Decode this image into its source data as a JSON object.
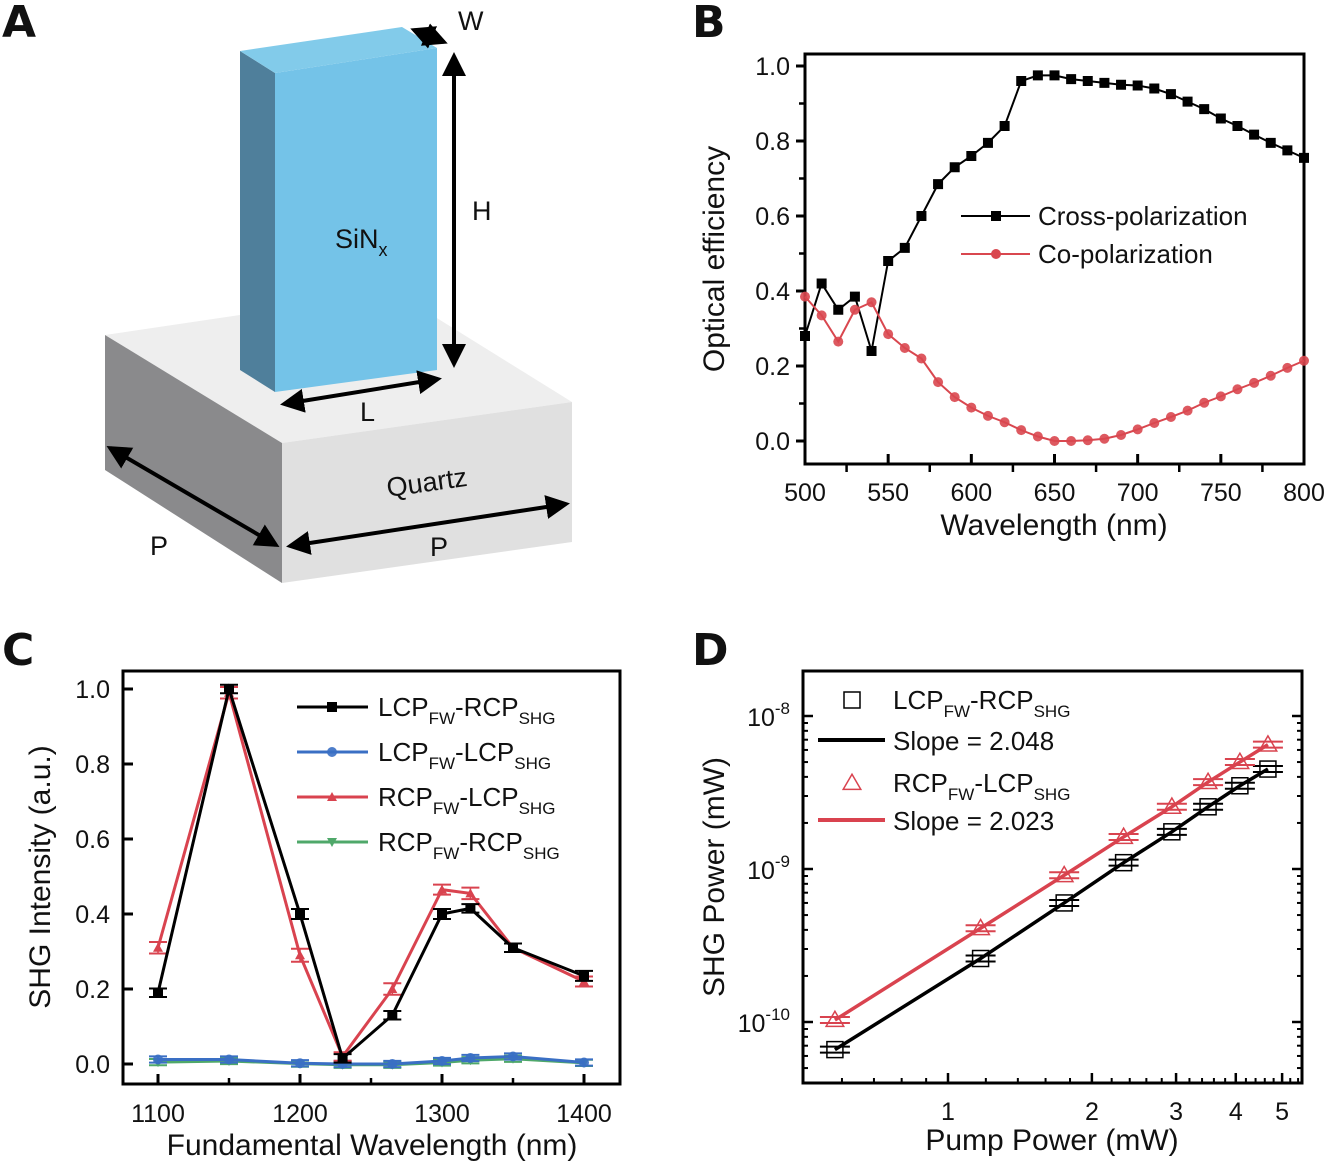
{
  "figure": {
    "panels": [
      "A",
      "B",
      "C",
      "D"
    ]
  },
  "panel_a": {
    "letter": "A",
    "labels": {
      "pillar_material": "SiN",
      "pillar_material_sub": "x",
      "substrate_material": "Quartz",
      "height": "H",
      "width": "W",
      "length": "L",
      "period_left": "P",
      "period_right": "P"
    },
    "colors": {
      "pillar_front": "#74c3e8",
      "pillar_side": "#4f7f9b",
      "pillar_top": "#82cbea",
      "slab_top": "#eeeeee",
      "slab_front": "#e0e0e0",
      "slab_left": "#8a8a8c"
    }
  },
  "chart_data": [
    {
      "id": "B",
      "letter": "B",
      "type": "line",
      "title": "",
      "xlabel": "Wavelength (nm)",
      "ylabel": "Optical efficiency",
      "xlim": [
        500,
        800
      ],
      "ylim": [
        -0.06,
        1.03
      ],
      "xticks": [
        500,
        550,
        600,
        650,
        700,
        750,
        800
      ],
      "xtick_labels": [
        "500",
        "550",
        "600",
        "650",
        "700",
        "750",
        "800"
      ],
      "yticks": [
        0.0,
        0.2,
        0.4,
        0.6,
        0.8,
        1.0
      ],
      "ytick_labels": [
        "0.0",
        "0.2",
        "0.4",
        "0.6",
        "0.8",
        "1.0"
      ],
      "grid": false,
      "legend_position": "center-right",
      "x": [
        500,
        510,
        520,
        530,
        540,
        550,
        560,
        570,
        580,
        590,
        600,
        610,
        620,
        630,
        640,
        650,
        660,
        670,
        680,
        690,
        700,
        710,
        720,
        730,
        740,
        750,
        760,
        770,
        780,
        790,
        800
      ],
      "series": [
        {
          "name": "Cross-polarization",
          "color": "#000000",
          "marker": "square",
          "values": [
            0.28,
            0.42,
            0.35,
            0.385,
            0.24,
            0.48,
            0.515,
            0.6,
            0.685,
            0.73,
            0.76,
            0.795,
            0.84,
            0.96,
            0.975,
            0.975,
            0.965,
            0.96,
            0.955,
            0.95,
            0.948,
            0.94,
            0.925,
            0.905,
            0.885,
            0.86,
            0.84,
            0.817,
            0.795,
            0.775,
            0.755
          ]
        },
        {
          "name": "Co-polarization",
          "color": "#d9474f",
          "marker": "circle",
          "values": [
            0.385,
            0.335,
            0.265,
            0.35,
            0.37,
            0.285,
            0.248,
            0.22,
            0.157,
            0.117,
            0.089,
            0.067,
            0.05,
            0.029,
            0.012,
            0.0,
            0.0,
            0.002,
            0.006,
            0.016,
            0.031,
            0.048,
            0.064,
            0.081,
            0.102,
            0.119,
            0.138,
            0.155,
            0.174,
            0.195,
            0.214
          ]
        }
      ]
    },
    {
      "id": "C",
      "letter": "C",
      "type": "line",
      "title": "",
      "xlabel": "Fundamental Wavelength (nm)",
      "ylabel": "SHG Intensity (a.u.)",
      "xlim": [
        1075,
        1425
      ],
      "ylim": [
        -0.055,
        1.05
      ],
      "xticks": [
        1100,
        1200,
        1300,
        1400
      ],
      "xtick_labels": [
        "1100",
        "1200",
        "1300",
        "1400"
      ],
      "minor_xticks": [
        1150,
        1250,
        1350
      ],
      "yticks": [
        0.0,
        0.2,
        0.4,
        0.6,
        0.8,
        1.0
      ],
      "ytick_labels": [
        "0.0",
        "0.2",
        "0.4",
        "0.6",
        "0.8",
        "1.0"
      ],
      "grid": false,
      "legend_position": "top-right",
      "x": [
        1100,
        1150,
        1200,
        1230,
        1265,
        1300,
        1320,
        1350,
        1400
      ],
      "series": [
        {
          "name": "LCP",
          "sub1": "FW",
          "mid": "-RCP",
          "sub2": "SHG",
          "color": "#000000",
          "marker": "square",
          "values": [
            0.19,
            1.0,
            0.4,
            0.015,
            0.13,
            0.4,
            0.415,
            0.31,
            0.235
          ],
          "errors": [
            0.006,
            0.006,
            0.008,
            0.006,
            0.006,
            0.008,
            0.006,
            0.006,
            0.008
          ]
        },
        {
          "name": "LCP",
          "sub1": "FW",
          "mid": "-LCP",
          "sub2": "SHG",
          "color": "#3a6fc4",
          "marker": "circle",
          "values": [
            0.012,
            0.012,
            0.002,
            0.0,
            0.0,
            0.008,
            0.016,
            0.02,
            0.004
          ],
          "errors": [
            0.003,
            0.003,
            0.003,
            0.003,
            0.003,
            0.003,
            0.003,
            0.003,
            0.003
          ]
        },
        {
          "name": "RCP",
          "sub1": "FW",
          "mid": "-LCP",
          "sub2": "SHG",
          "color": "#d9434f",
          "marker": "triangle-up",
          "values": [
            0.31,
            0.99,
            0.29,
            0.02,
            0.2,
            0.465,
            0.455,
            0.31,
            0.22
          ],
          "errors": [
            0.01,
            0.01,
            0.012,
            0.006,
            0.01,
            0.008,
            0.01,
            0.006,
            0.008
          ]
        },
        {
          "name": "RCP",
          "sub1": "FW",
          "mid": "-RCP",
          "sub2": "SHG",
          "color": "#4fa86a",
          "marker": "triangle-down",
          "values": [
            0.005,
            0.008,
            0.001,
            -0.002,
            -0.002,
            0.004,
            0.01,
            0.014,
            0.003
          ],
          "errors": [
            0.003,
            0.003,
            0.003,
            0.003,
            0.003,
            0.003,
            0.003,
            0.003,
            0.003
          ]
        }
      ]
    },
    {
      "id": "D",
      "letter": "D",
      "type": "scatter",
      "title": "",
      "xlabel": "Pump Power (mW)",
      "ylabel": "SHG Power (mW)",
      "xscale": "log",
      "yscale": "log",
      "xlim": [
        0.5,
        5.5
      ],
      "ylim": [
        4.1e-11,
        2e-08
      ],
      "xticks": [
        1,
        2,
        3,
        4,
        5
      ],
      "xtick_labels": [
        "1",
        "2",
        "3",
        "4",
        "5"
      ],
      "yticks": [
        1e-10,
        1e-09,
        1e-08
      ],
      "ytick_labels": [
        {
          "base": "10",
          "exp": "-10"
        },
        {
          "base": "10",
          "exp": "-9"
        },
        {
          "base": "10",
          "exp": "-8"
        }
      ],
      "grid": false,
      "legend_position": "top-left",
      "x": [
        0.58,
        1.17,
        1.75,
        2.33,
        2.94,
        3.5,
        4.08,
        4.67
      ],
      "series": [
        {
          "name": "LCP",
          "sub1": "FW",
          "mid": "-RCP",
          "sub2": "SHG",
          "color": "#000000",
          "marker": "open-square",
          "values": [
            6.6e-11,
            2.6e-10,
            6e-10,
            1.1e-09,
            1.75e-09,
            2.55e-09,
            3.5e-09,
            4.5e-09
          ],
          "fit_label": "Slope = 2.048",
          "slope": 2.048
        },
        {
          "name": "RCP",
          "sub1": "FW",
          "mid": "-LCP",
          "sub2": "SHG",
          "color": "#d9434f",
          "marker": "open-triangle",
          "values": [
            1.03e-10,
            4.1e-10,
            9.1e-10,
            1.62e-09,
            2.55e-09,
            3.7e-09,
            5e-09,
            6.5e-09
          ],
          "fit_label": "Slope = 2.023",
          "slope": 2.023
        }
      ]
    }
  ]
}
